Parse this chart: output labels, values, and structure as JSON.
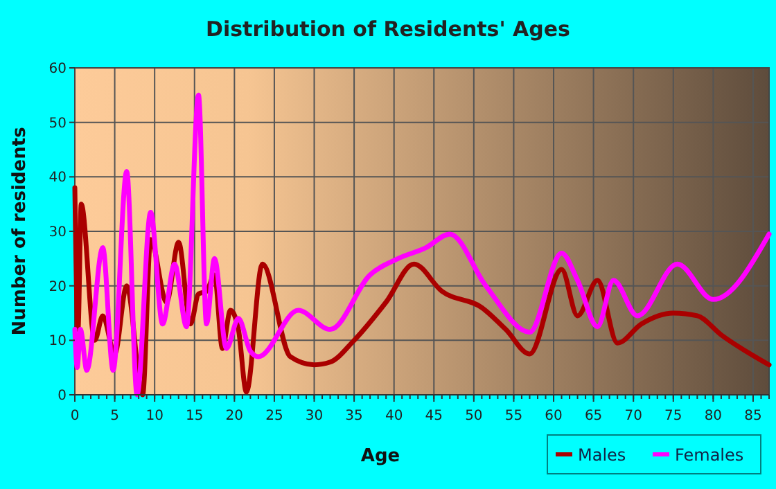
{
  "chart_data": {
    "type": "line",
    "title": "Distribution of Residents' Ages",
    "xlabel": "Age",
    "ylabel": "Number of residents",
    "xlim": [
      0,
      87
    ],
    "xticks": [
      0,
      5,
      10,
      15,
      20,
      25,
      30,
      35,
      40,
      45,
      50,
      55,
      60,
      65,
      70,
      75,
      80,
      85
    ],
    "ylim": [
      0,
      60
    ],
    "yticks": [
      0,
      10,
      20,
      30,
      40,
      50,
      60
    ],
    "grid": true,
    "legend": "bottom right",
    "series": [
      {
        "name": "Males",
        "color": "#aa0000",
        "x": [
          0,
          0.4,
          0.8,
          2.5,
          3.5,
          5,
          6.5,
          8.5,
          9.5,
          11.5,
          13,
          14.5,
          15.5,
          16.5,
          17.5,
          18.5,
          19.5,
          20.5,
          21.5,
          23.5,
          27,
          30,
          32,
          35,
          39,
          42.5,
          46,
          51,
          54,
          57,
          61,
          63,
          65.5,
          68,
          71,
          75,
          78,
          81,
          87
        ],
        "values": [
          38,
          12,
          35,
          10,
          14.5,
          7.5,
          20,
          0,
          28.5,
          17,
          28,
          13,
          18.5,
          19,
          22,
          8.5,
          15.5,
          12,
          0.5,
          24,
          7,
          5.5,
          6,
          10,
          17,
          24,
          19,
          16,
          12,
          7.5,
          23,
          14.5,
          21,
          9.5,
          13,
          15,
          14.5,
          11,
          5.5
        ]
      },
      {
        "name": "Females",
        "color": "#ff00ff",
        "x": [
          0,
          0.3,
          0.7,
          1.5,
          3.5,
          4.8,
          6.5,
          7.8,
          9.5,
          11,
          12.5,
          14,
          15.5,
          16.5,
          17.5,
          19,
          20.5,
          22,
          23,
          28,
          32,
          37,
          40.5,
          44,
          47,
          51.5,
          57,
          61,
          63,
          65.5,
          67.5,
          70.5,
          75.5,
          80,
          87
        ],
        "values": [
          12,
          5,
          12,
          4.5,
          27,
          4.5,
          41,
          0,
          33.5,
          13,
          24,
          12.5,
          55,
          13,
          25,
          8.5,
          14,
          8,
          7,
          15.5,
          12,
          22,
          25,
          27,
          29.5,
          20,
          11.5,
          26,
          21,
          12.5,
          21,
          14.5,
          24,
          17.5,
          29.5
        ]
      }
    ]
  }
}
